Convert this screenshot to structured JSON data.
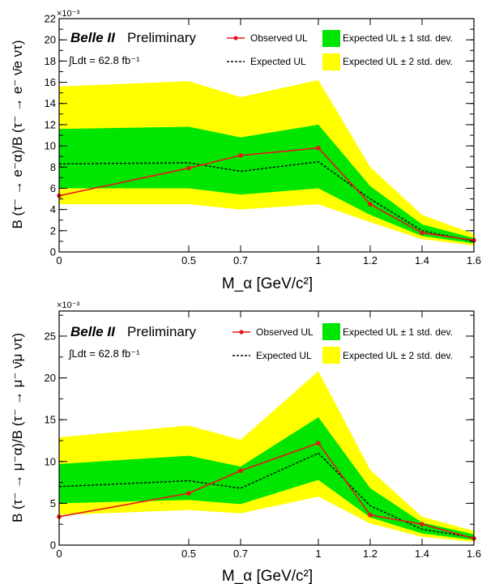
{
  "chart_data": [
    {
      "type": "line",
      "x": [
        0,
        0.5,
        0.7,
        1.0,
        1.2,
        1.4,
        1.6
      ],
      "ylim": [
        0,
        22
      ],
      "xlim": [
        0,
        1.6
      ],
      "x_ticks": [
        "0",
        "0.5",
        "0.7",
        "1",
        "1.2",
        "1.4",
        "1.6"
      ],
      "y_ticks": [
        "0",
        "2",
        "4",
        "6",
        "8",
        "10",
        "12",
        "14",
        "16",
        "18",
        "20",
        "22"
      ],
      "y_exponent": "×10⁻³",
      "xlabel": "M_α [GeV/c²]",
      "ylabel": "B (τ⁻ → e⁻α)/B (τ⁻ → e⁻ ν̄e ντ)",
      "label_belle": "Belle II",
      "label_prelim": "Preliminary",
      "label_lumi": "∫Ldt = 62.8 fb⁻¹",
      "legend": {
        "observed": "Observed UL",
        "expected": "Expected UL",
        "band1": "Expected UL ± 1 std. dev.",
        "band2": "Expected UL ± 2 std. dev."
      },
      "series": [
        {
          "name": "Observed UL",
          "values": [
            5.3,
            7.9,
            9.1,
            9.8,
            4.5,
            1.8,
            1.1
          ]
        },
        {
          "name": "Expected UL",
          "values": [
            8.3,
            8.4,
            7.6,
            8.5,
            5.0,
            2.0,
            1.0
          ]
        }
      ],
      "band_1sigma": {
        "low": [
          6.0,
          6.0,
          5.4,
          6.0,
          3.5,
          1.5,
          0.8
        ],
        "high": [
          11.6,
          11.8,
          10.8,
          12.0,
          6.2,
          2.6,
          1.3
        ]
      },
      "band_2sigma": {
        "low": [
          4.5,
          4.5,
          4.0,
          4.5,
          2.8,
          1.2,
          0.6
        ],
        "high": [
          15.6,
          16.1,
          14.6,
          16.2,
          8.0,
          3.5,
          1.7
        ]
      },
      "colors": {
        "observed": "#e8141b",
        "expected": "#000000",
        "band1": "#00e600",
        "band2": "#ffff00"
      }
    },
    {
      "type": "line",
      "x": [
        0,
        0.5,
        0.7,
        1.0,
        1.2,
        1.4,
        1.6
      ],
      "ylim": [
        0,
        28
      ],
      "xlim": [
        0,
        1.6
      ],
      "x_ticks": [
        "0",
        "0.5",
        "0.7",
        "1",
        "1.2",
        "1.4",
        "1.6"
      ],
      "y_ticks": [
        "0",
        "5",
        "10",
        "15",
        "20",
        "25"
      ],
      "y_exponent": "×10⁻³",
      "xlabel": "M_α [GeV/c²]",
      "ylabel": "B (τ⁻ → μ⁻α)/B (τ⁻ → μ⁻ ν̄μ ντ)",
      "label_belle": "Belle II",
      "label_prelim": "Preliminary",
      "label_lumi": "∫Ldt = 62.8 fb⁻¹",
      "legend": {
        "observed": "Observed UL",
        "expected": "Expected UL",
        "band1": "Expected UL ± 1 std. dev.",
        "band2": "Expected UL ± 2 std. dev."
      },
      "series": [
        {
          "name": "Observed UL",
          "values": [
            3.4,
            6.2,
            8.9,
            12.2,
            3.6,
            2.5,
            0.8
          ]
        },
        {
          "name": "Expected UL",
          "values": [
            7.0,
            7.7,
            6.8,
            11.0,
            4.7,
            1.9,
            0.9
          ]
        }
      ],
      "band_1sigma": {
        "low": [
          5.0,
          5.4,
          4.9,
          7.8,
          3.3,
          1.4,
          0.6
        ],
        "high": [
          9.7,
          10.7,
          9.4,
          15.3,
          6.8,
          2.7,
          1.3
        ]
      },
      "band_2sigma": {
        "low": [
          3.6,
          4.2,
          3.8,
          5.8,
          2.6,
          1.0,
          0.4
        ],
        "high": [
          12.9,
          14.3,
          12.6,
          20.8,
          9.0,
          3.4,
          1.7
        ]
      },
      "colors": {
        "observed": "#e8141b",
        "expected": "#000000",
        "band1": "#00e600",
        "band2": "#ffff00"
      }
    }
  ]
}
